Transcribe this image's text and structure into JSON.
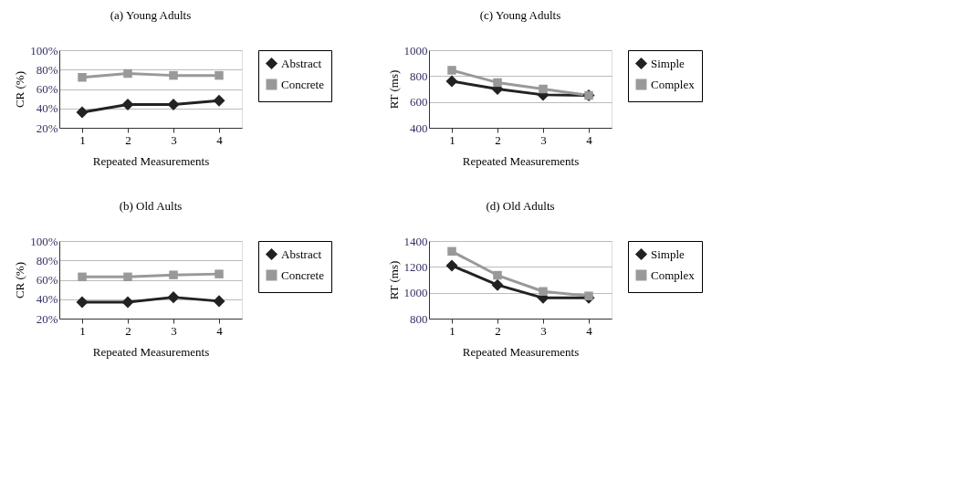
{
  "chart_data": [
    {
      "type": "line",
      "title": "(a) Young Adults",
      "xlabel": "Repeated Measurements",
      "ylabel": "CR (%)",
      "categories": [
        "1",
        "2",
        "3",
        "4"
      ],
      "ylim": [
        20,
        100
      ],
      "yticks": [
        {
          "value": 20,
          "label": "20%"
        },
        {
          "value": 40,
          "label": "40%"
        },
        {
          "value": 60,
          "label": "60%"
        },
        {
          "value": 80,
          "label": "80%"
        },
        {
          "value": 100,
          "label": "100%"
        }
      ],
      "grid": "y",
      "legend": "right",
      "series": [
        {
          "name": "Abstract",
          "color": "#222222",
          "marker": "diamond",
          "values": [
            36,
            44,
            44,
            48
          ]
        },
        {
          "name": "Concrete",
          "color": "#999999",
          "marker": "square",
          "values": [
            72,
            76,
            74,
            74
          ]
        }
      ]
    },
    {
      "type": "line",
      "title": "(c) Young Adults",
      "xlabel": "Repeated Measurements",
      "ylabel": "RT (ms)",
      "categories": [
        "1",
        "2",
        "3",
        "4"
      ],
      "ylim": [
        400,
        1000
      ],
      "yticks": [
        400,
        600,
        800,
        1000
      ],
      "grid": "y",
      "legend": "right",
      "series": [
        {
          "name": "Simple",
          "color": "#222222",
          "marker": "diamond",
          "values": [
            760,
            700,
            655,
            650
          ]
        },
        {
          "name": "Complex",
          "color": "#999999",
          "marker": "square",
          "values": [
            845,
            750,
            700,
            650
          ]
        }
      ]
    },
    {
      "type": "line",
      "title": "(b) Old Aults",
      "xlabel": "Repeated Measurements",
      "ylabel": "CR (%)",
      "categories": [
        "1",
        "2",
        "3",
        "4"
      ],
      "ylim": [
        20,
        100
      ],
      "yticks": [
        {
          "value": 20,
          "label": "20%"
        },
        {
          "value": 40,
          "label": "40%"
        },
        {
          "value": 60,
          "label": "60%"
        },
        {
          "value": 80,
          "label": "80%"
        },
        {
          "value": 100,
          "label": "100%"
        }
      ],
      "grid": "y",
      "legend": "right",
      "series": [
        {
          "name": "Abstract",
          "color": "#222222",
          "marker": "diamond",
          "values": [
            37,
            37,
            42,
            38
          ]
        },
        {
          "name": "Concrete",
          "color": "#999999",
          "marker": "square",
          "values": [
            63,
            63,
            65,
            66
          ]
        }
      ]
    },
    {
      "type": "line",
      "title": "(d) Old Adults",
      "xlabel": "Repeated Measurements",
      "ylabel": "RT (ms)",
      "categories": [
        "1",
        "2",
        "3",
        "4"
      ],
      "ylim": [
        800,
        1400
      ],
      "yticks": [
        800,
        1000,
        1200,
        1400
      ],
      "grid": "y",
      "legend": "right",
      "series": [
        {
          "name": "Simple",
          "color": "#222222",
          "marker": "diamond",
          "values": [
            1210,
            1060,
            960,
            960
          ]
        },
        {
          "name": "Complex",
          "color": "#999999",
          "marker": "square",
          "values": [
            1320,
            1135,
            1010,
            975
          ]
        }
      ]
    }
  ]
}
